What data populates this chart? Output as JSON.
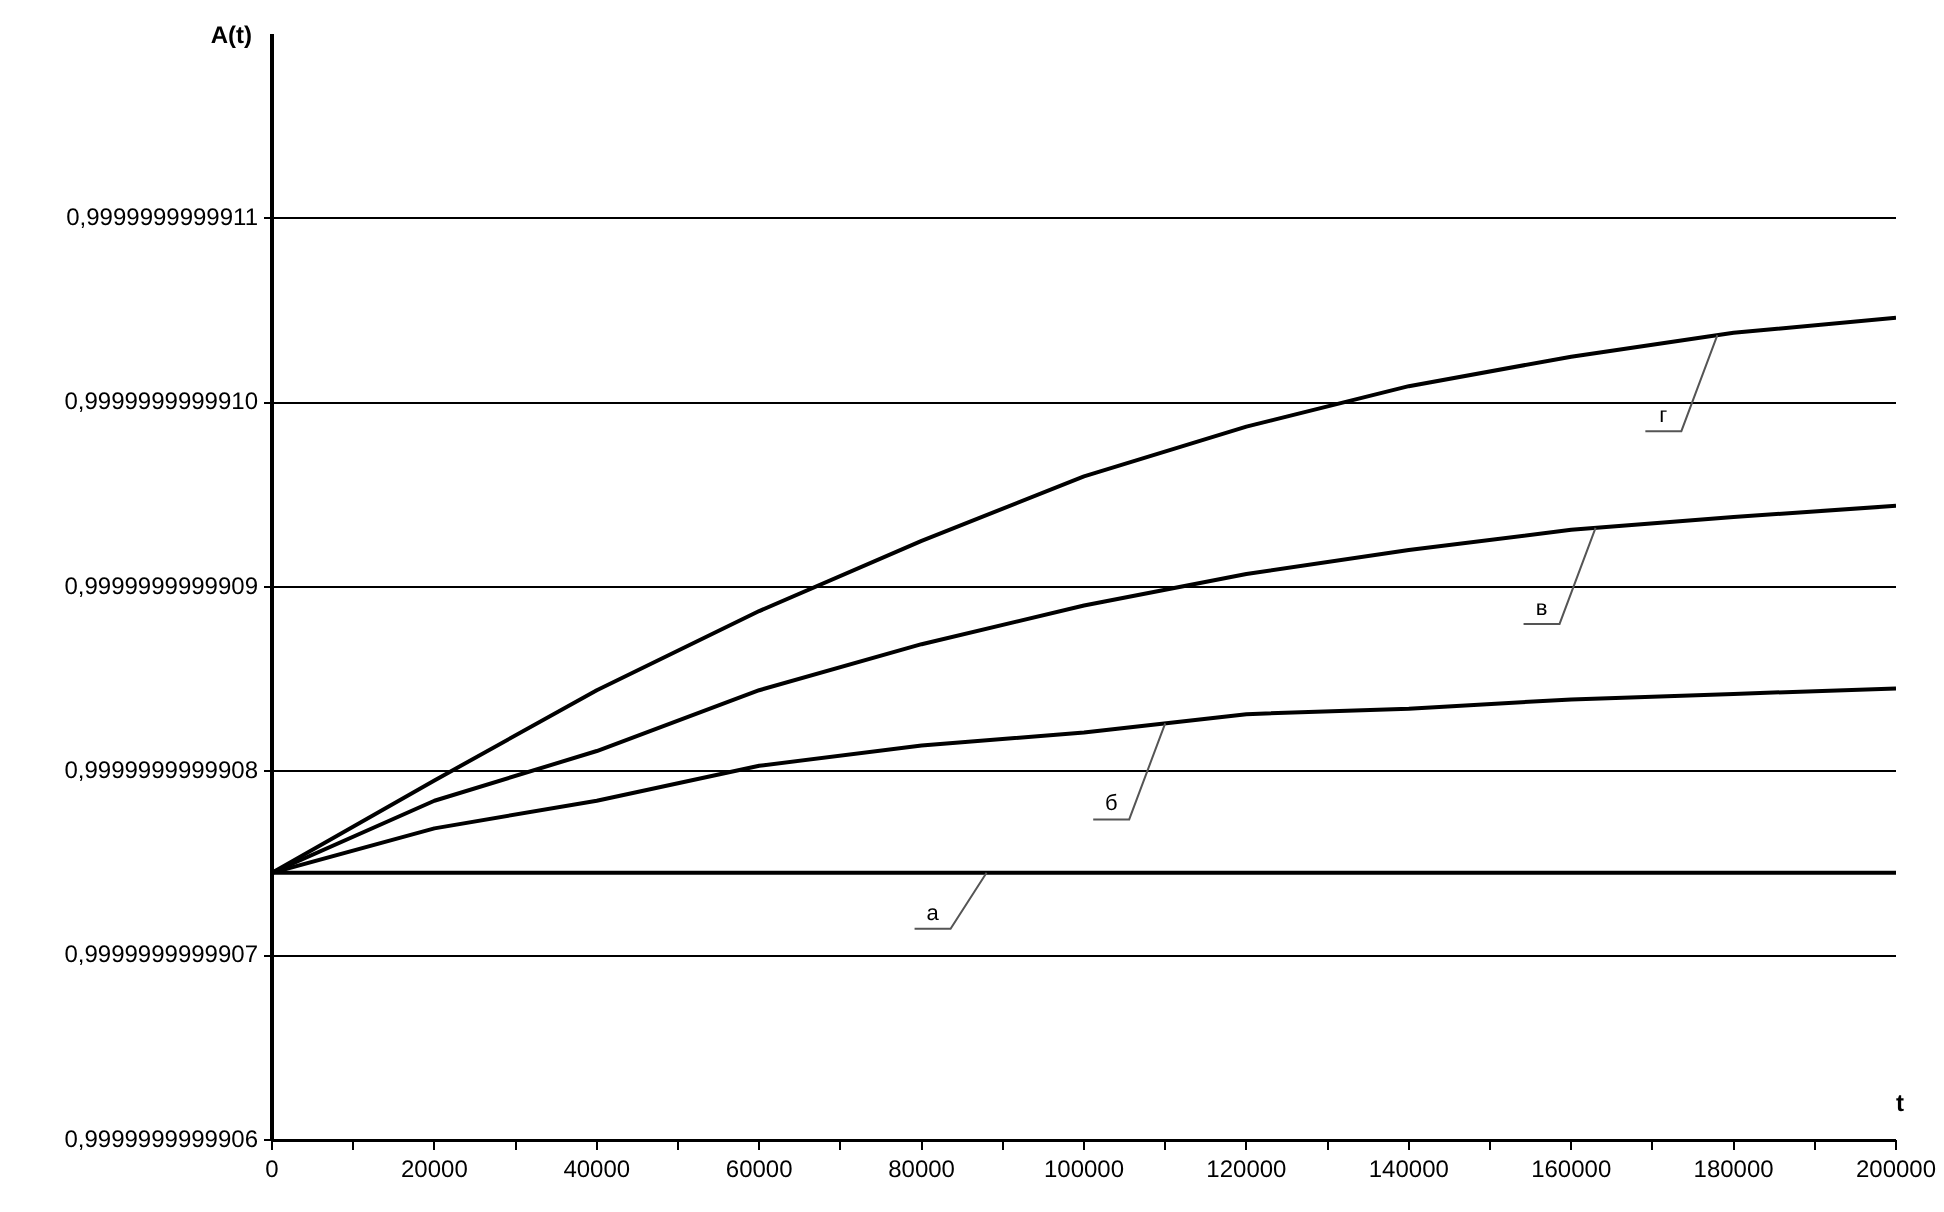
{
  "chart_data": {
    "type": "line",
    "title": "A(t)",
    "xlabel": "t",
    "x": [
      0,
      20000,
      40000,
      60000,
      80000,
      100000,
      120000,
      140000,
      160000,
      180000,
      200000
    ],
    "series": [
      {
        "name": "а",
        "color": "#000000",
        "values": [
          0.999999999990745,
          0.999999999990745,
          0.999999999990745,
          0.999999999990745,
          0.999999999990745,
          0.999999999990745,
          0.999999999990745,
          0.999999999990745,
          0.999999999990745,
          0.999999999990745,
          0.999999999990745
        ]
      },
      {
        "name": "б",
        "color": "#000000",
        "values": [
          0.999999999990745,
          0.999999999990769,
          0.999999999990784,
          0.999999999990803,
          0.999999999990814,
          0.999999999990821,
          0.999999999990831,
          0.999999999990834,
          0.999999999990839,
          0.999999999990842,
          0.999999999990845
        ]
      },
      {
        "name": "в",
        "color": "#000000",
        "values": [
          0.999999999990745,
          0.999999999990784,
          0.999999999990811,
          0.999999999990844,
          0.999999999990869,
          0.99999999999089,
          0.999999999990907,
          0.99999999999092,
          0.999999999990931,
          0.999999999990938,
          0.999999999990944
        ]
      },
      {
        "name": "г",
        "color": "#000000",
        "values": [
          0.999999999990745,
          0.999999999990795,
          0.999999999990844,
          0.999999999990887,
          0.999999999990925,
          0.99999999999096,
          0.999999999990987,
          0.999999999991009,
          0.999999999991025,
          0.999999999991038,
          0.999999999991046
        ]
      }
    ],
    "xlim": [
      0,
      200000
    ],
    "xticks": [
      0,
      {
        "value": 10000,
        "label": null
      },
      20000,
      {
        "value": 30000,
        "label": null
      },
      40000,
      {
        "value": 50000,
        "label": null
      },
      60000,
      {
        "value": 70000,
        "label": null
      },
      80000,
      {
        "value": 90000,
        "label": null
      },
      100000,
      {
        "value": 110000,
        "label": null
      },
      120000,
      {
        "value": 130000,
        "label": null
      },
      140000,
      {
        "value": 150000,
        "label": null
      },
      160000,
      {
        "value": 170000,
        "label": null
      },
      180000,
      {
        "value": 190000,
        "label": null
      },
      200000
    ],
    "ylim": [
      0.9999999999906,
      0.9999999999912
    ],
    "yticks": [
      {
        "value": 0.9999999999906,
        "label": "0,9999999999906"
      },
      {
        "value": 0.9999999999907,
        "label": "0,9999999999907"
      },
      {
        "value": 0.9999999999908,
        "label": "0,9999999999908"
      },
      {
        "value": 0.9999999999909,
        "label": "0,9999999999909"
      },
      {
        "value": 0.999999999991,
        "label": "0,9999999999910"
      },
      {
        "value": 0.9999999999911,
        "label": "0,9999999999911"
      }
    ],
    "grid": "y",
    "legend": false
  }
}
